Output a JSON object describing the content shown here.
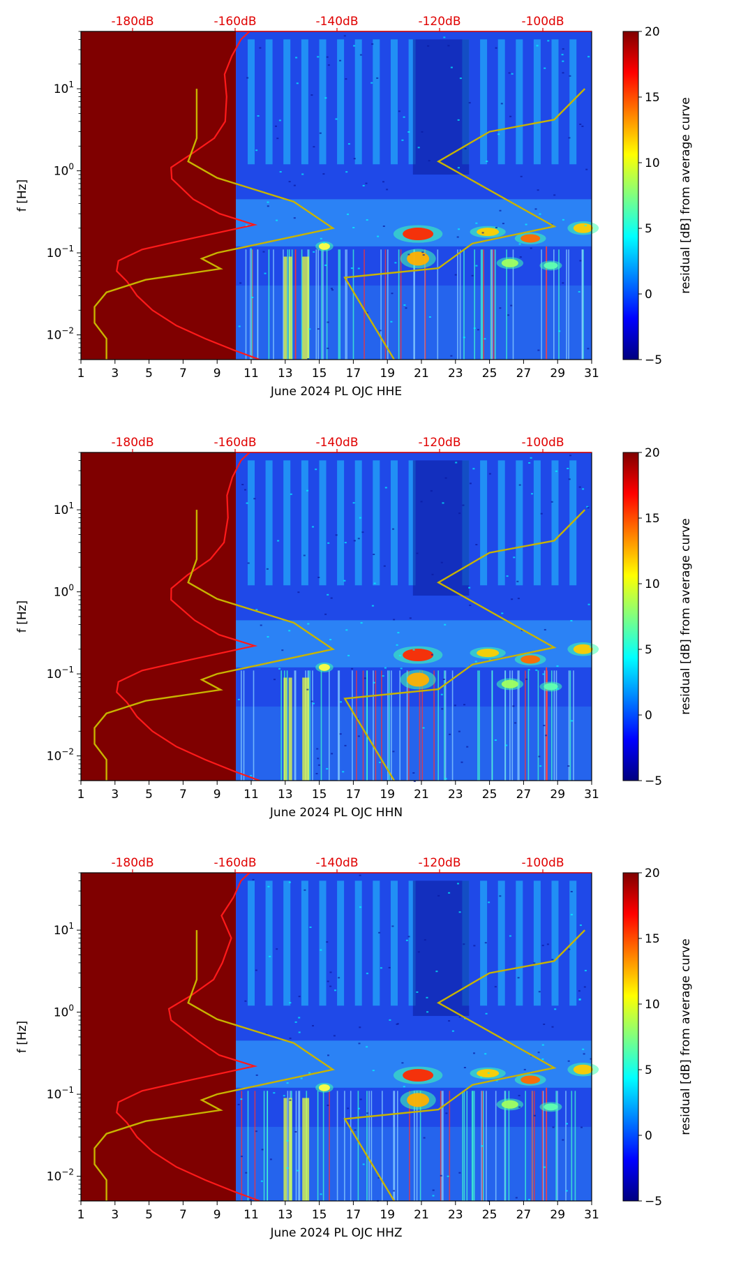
{
  "colors": {
    "base": "#7f0000",
    "spectral_median": "#ff1a1a",
    "noise_model": "#c8b400",
    "top_axis_text": "#e00000",
    "colormap": [
      "#00007f",
      "#0000ff",
      "#0080ff",
      "#00ffff",
      "#80ff80",
      "#ffff00",
      "#ff8000",
      "#ff0000",
      "#7f0000"
    ]
  },
  "chart_data": [
    {
      "type": "heatmap",
      "component": "HHE",
      "xlabel": "June 2024 PL OJC  HHE",
      "ylabel": "f [Hz]",
      "colorbar_label": "residual [dB] from average curve",
      "colorbar_ticks": [
        "−5",
        "0",
        "5",
        "10",
        "15",
        "20"
      ],
      "clim": [
        -5,
        20
      ],
      "x_ticks": [
        "1",
        "3",
        "5",
        "7",
        "9",
        "11",
        "13",
        "15",
        "17",
        "19",
        "21",
        "23",
        "25",
        "27",
        "29",
        "31"
      ],
      "xlim": [
        1,
        31
      ],
      "y_scale": "log",
      "ylim": [
        0.005,
        50
      ],
      "y_ticks": [
        {
          "base": "10",
          "exp": "1"
        },
        {
          "base": "10",
          "exp": "0"
        },
        {
          "base": "10",
          "exp": "−1"
        },
        {
          "base": "10",
          "exp": "−2"
        }
      ],
      "top_axis_ticks": [
        "-180dB",
        "-160dB",
        "-140dB",
        "-120dB",
        "-100dB"
      ],
      "data_start_day": 10.1,
      "median_curve_peak_hz": 0.22
    },
    {
      "type": "heatmap",
      "component": "HHN",
      "xlabel": "June 2024 PL OJC  HHN",
      "ylabel": "f [Hz]",
      "colorbar_label": "residual [dB] from average curve",
      "colorbar_ticks": [
        "−5",
        "0",
        "5",
        "10",
        "15",
        "20"
      ],
      "clim": [
        -5,
        20
      ],
      "x_ticks": [
        "1",
        "3",
        "5",
        "7",
        "9",
        "11",
        "13",
        "15",
        "17",
        "19",
        "21",
        "23",
        "25",
        "27",
        "29",
        "31"
      ],
      "xlim": [
        1,
        31
      ],
      "y_scale": "log",
      "ylim": [
        0.005,
        50
      ],
      "y_ticks": [
        {
          "base": "10",
          "exp": "1"
        },
        {
          "base": "10",
          "exp": "0"
        },
        {
          "base": "10",
          "exp": "−1"
        },
        {
          "base": "10",
          "exp": "−2"
        }
      ],
      "top_axis_ticks": [
        "-180dB",
        "-160dB",
        "-140dB",
        "-120dB",
        "-100dB"
      ],
      "data_start_day": 10.1,
      "median_curve_peak_hz": 0.22
    },
    {
      "type": "heatmap",
      "component": "HHZ",
      "xlabel": "June 2024 PL OJC  HHZ",
      "ylabel": "f [Hz]",
      "colorbar_label": "residual [dB] from average curve",
      "colorbar_ticks": [
        "−5",
        "0",
        "5",
        "10",
        "15",
        "20"
      ],
      "clim": [
        -5,
        20
      ],
      "x_ticks": [
        "1",
        "3",
        "5",
        "7",
        "9",
        "11",
        "13",
        "15",
        "17",
        "19",
        "21",
        "23",
        "25",
        "27",
        "29",
        "31"
      ],
      "xlim": [
        1,
        31
      ],
      "y_scale": "log",
      "ylim": [
        0.005,
        50
      ],
      "y_ticks": [
        {
          "base": "10",
          "exp": "1"
        },
        {
          "base": "10",
          "exp": "0"
        },
        {
          "base": "10",
          "exp": "−1"
        },
        {
          "base": "10",
          "exp": "−2"
        }
      ],
      "top_axis_ticks": [
        "-180dB",
        "-160dB",
        "-140dB",
        "-120dB",
        "-100dB"
      ],
      "data_start_day": 10.1,
      "median_curve_peak_hz": 0.22
    }
  ]
}
